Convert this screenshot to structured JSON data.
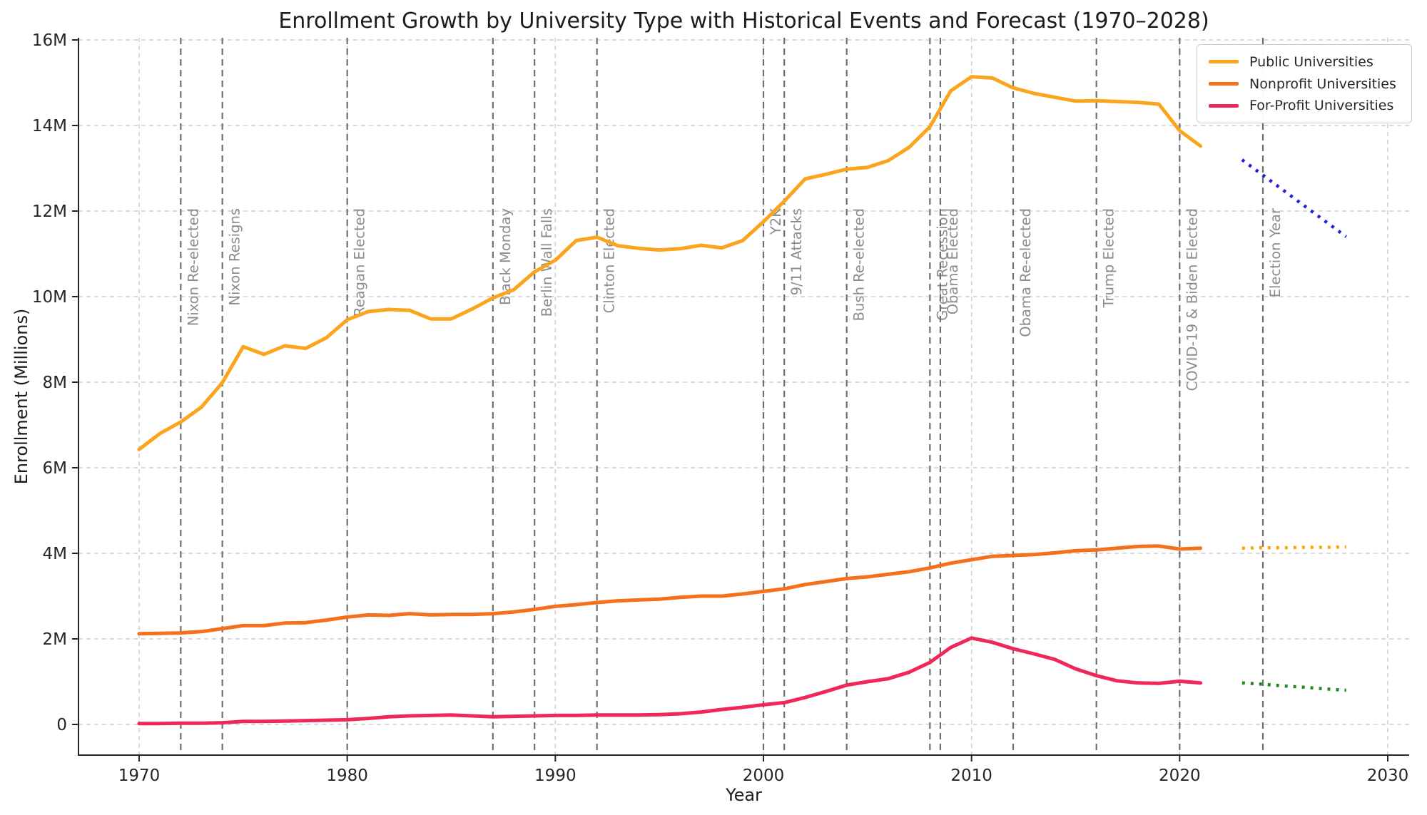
{
  "chart_data": {
    "type": "line",
    "title": "Enrollment Growth by University Type with Historical Events and Forecast (1970–2028)",
    "xlabel": "Year",
    "ylabel": "Enrollment (Millions)",
    "grid": true,
    "legend_position": "upper right",
    "xlim": [
      1967,
      2031
    ],
    "ylim": [
      -0.7,
      16.05
    ],
    "x_ticks": [
      1970,
      1980,
      1990,
      2000,
      2010,
      2020,
      2030
    ],
    "x_tick_labels": [
      "1970",
      "1980",
      "1990",
      "2000",
      "2010",
      "2020",
      "2030"
    ],
    "y_ticks": [
      0,
      2,
      4,
      6,
      8,
      10,
      12,
      14,
      16
    ],
    "y_tick_labels": [
      "0",
      "2M",
      "4M",
      "6M",
      "8M",
      "10M",
      "12M",
      "14M",
      "16M"
    ],
    "years": [
      1970,
      1971,
      1972,
      1973,
      1974,
      1975,
      1976,
      1977,
      1978,
      1979,
      1980,
      1981,
      1982,
      1983,
      1984,
      1985,
      1986,
      1987,
      1988,
      1989,
      1990,
      1991,
      1992,
      1993,
      1994,
      1995,
      1996,
      1997,
      1998,
      1999,
      2000,
      2001,
      2002,
      2003,
      2004,
      2005,
      2006,
      2007,
      2008,
      2009,
      2010,
      2011,
      2012,
      2013,
      2014,
      2015,
      2016,
      2017,
      2018,
      2019,
      2020,
      2021
    ],
    "series": [
      {
        "name": "Public Universities",
        "color": "#FBA51E",
        "style": "solid",
        "values": [
          6.43,
          6.8,
          7.07,
          7.42,
          7.99,
          8.83,
          8.65,
          8.85,
          8.79,
          9.04,
          9.46,
          9.65,
          9.7,
          9.68,
          9.48,
          9.48,
          9.71,
          9.97,
          10.16,
          10.58,
          10.85,
          11.31,
          11.39,
          11.19,
          11.13,
          11.09,
          11.12,
          11.2,
          11.14,
          11.31,
          11.75,
          12.23,
          12.75,
          12.86,
          12.98,
          13.02,
          13.18,
          13.49,
          13.97,
          14.81,
          15.14,
          15.11,
          14.88,
          14.75,
          14.66,
          14.57,
          14.58,
          14.56,
          14.54,
          14.5,
          13.88,
          13.52
        ]
      },
      {
        "name": "Nonprofit Universities",
        "color": "#F4701D",
        "style": "solid",
        "values": [
          2.12,
          2.13,
          2.14,
          2.17,
          2.24,
          2.31,
          2.31,
          2.37,
          2.38,
          2.44,
          2.51,
          2.56,
          2.55,
          2.59,
          2.56,
          2.57,
          2.57,
          2.59,
          2.63,
          2.69,
          2.76,
          2.8,
          2.85,
          2.89,
          2.91,
          2.93,
          2.97,
          3.0,
          3.0,
          3.05,
          3.11,
          3.17,
          3.27,
          3.34,
          3.41,
          3.45,
          3.51,
          3.57,
          3.66,
          3.77,
          3.85,
          3.93,
          3.95,
          3.97,
          4.01,
          4.06,
          4.08,
          4.12,
          4.16,
          4.17,
          4.1,
          4.12
        ]
      },
      {
        "name": "For-Profit Universities",
        "color": "#F0285A",
        "style": "solid",
        "values": [
          0.02,
          0.02,
          0.03,
          0.03,
          0.04,
          0.07,
          0.07,
          0.08,
          0.09,
          0.1,
          0.11,
          0.14,
          0.18,
          0.2,
          0.21,
          0.22,
          0.2,
          0.18,
          0.19,
          0.2,
          0.21,
          0.21,
          0.22,
          0.22,
          0.22,
          0.23,
          0.25,
          0.29,
          0.35,
          0.4,
          0.46,
          0.51,
          0.63,
          0.77,
          0.92,
          1.0,
          1.07,
          1.22,
          1.45,
          1.8,
          2.02,
          1.92,
          1.77,
          1.65,
          1.52,
          1.3,
          1.14,
          1.02,
          0.97,
          0.96,
          1.01,
          0.97
        ]
      }
    ],
    "forecast_years": [
      2023,
      2024,
      2025,
      2026,
      2027,
      2028
    ],
    "forecast_series": [
      {
        "name": "Public Universities forecast",
        "color": "#2020DD",
        "style": "dotted",
        "values": [
          13.2,
          12.84,
          12.48,
          12.12,
          11.76,
          11.4
        ]
      },
      {
        "name": "Nonprofit Universities forecast",
        "color": "#FFA500",
        "style": "dotted",
        "values": [
          4.12,
          4.13,
          4.13,
          4.14,
          4.14,
          4.15
        ]
      },
      {
        "name": "For-Profit Universities forecast",
        "color": "#228B22",
        "style": "dotted",
        "values": [
          0.97,
          0.94,
          0.9,
          0.87,
          0.83,
          0.8
        ]
      }
    ],
    "events": [
      {
        "year": 1972,
        "label": "Nixon Re-elected"
      },
      {
        "year": 1974,
        "label": "Nixon Resigns"
      },
      {
        "year": 1980,
        "label": "Reagan Elected"
      },
      {
        "year": 1987,
        "label": "Black Monday"
      },
      {
        "year": 1989,
        "label": "Berlin Wall Falls"
      },
      {
        "year": 1992,
        "label": "Clinton Elected"
      },
      {
        "year": 2000,
        "label": "Y2K"
      },
      {
        "year": 2001,
        "label": "9/11 Attacks"
      },
      {
        "year": 2004,
        "label": "Bush Re-elected"
      },
      {
        "year": 2008,
        "label": "Great Recession"
      },
      {
        "year": 2008.5,
        "label": "Obama Elected"
      },
      {
        "year": 2012,
        "label": "Obama Re-elected"
      },
      {
        "year": 2016,
        "label": "Trump Elected"
      },
      {
        "year": 2020,
        "label": "COVID-19 & Biden Elected"
      },
      {
        "year": 2024,
        "label": "Election Year"
      }
    ],
    "style_colors": {
      "gridline": "#cfcfcf",
      "event_line": "#6f6f6f",
      "event_label": "#8c8c8c",
      "axis": "#262626",
      "tick_label": "#262626"
    }
  }
}
